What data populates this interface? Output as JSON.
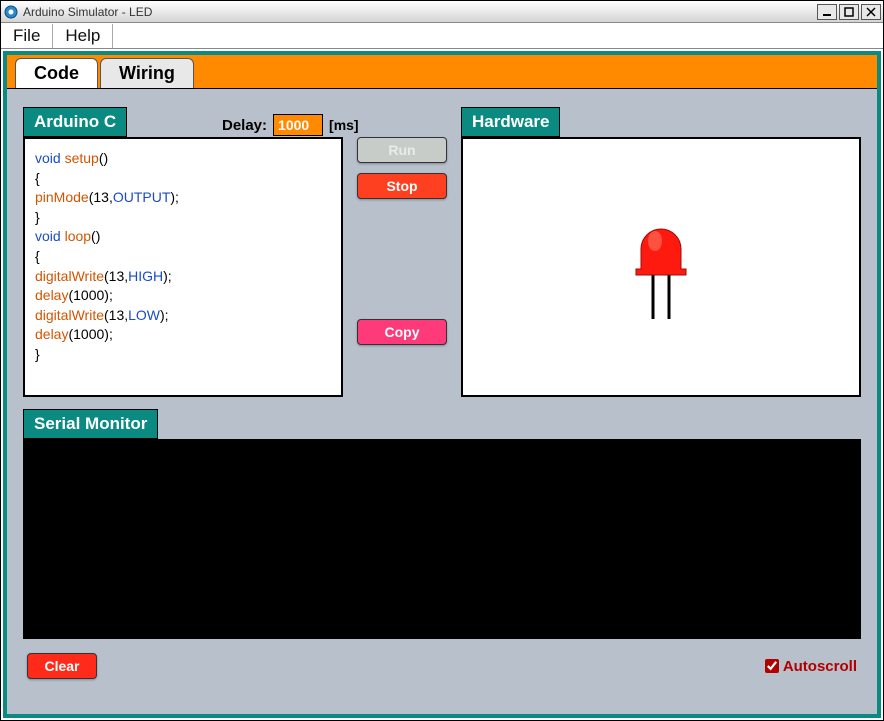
{
  "window": {
    "title": "Arduino Simulator - LED"
  },
  "menu": {
    "file": "File",
    "help": "Help"
  },
  "tabs": {
    "code": "Code",
    "wiring": "Wiring"
  },
  "panels": {
    "arduino_c": "Arduino C",
    "hardware": "Hardware",
    "serial_monitor": "Serial Monitor"
  },
  "delay": {
    "label": "Delay:",
    "value": "1000",
    "unit": "[ms]"
  },
  "buttons": {
    "run": "Run",
    "stop": "Stop",
    "copy": "Copy",
    "clear": "Clear"
  },
  "autoscroll": {
    "label": "Autoscroll",
    "checked": true
  },
  "code": {
    "lines": [
      {
        "tokens": [
          {
            "t": "void ",
            "c": "kw-void"
          },
          {
            "t": "setup",
            "c": "fn"
          },
          {
            "t": "()",
            "c": ""
          }
        ]
      },
      {
        "tokens": [
          {
            "t": "{",
            "c": ""
          }
        ]
      },
      {
        "tokens": [
          {
            "t": "pinMode",
            "c": "fn"
          },
          {
            "t": "(13,",
            "c": ""
          },
          {
            "t": "OUTPUT",
            "c": "output"
          },
          {
            "t": ");",
            "c": ""
          }
        ]
      },
      {
        "tokens": [
          {
            "t": "}",
            "c": ""
          }
        ]
      },
      {
        "tokens": [
          {
            "t": "void ",
            "c": "kw-void"
          },
          {
            "t": "loop",
            "c": "fn"
          },
          {
            "t": "()",
            "c": ""
          }
        ]
      },
      {
        "tokens": [
          {
            "t": "{",
            "c": ""
          }
        ]
      },
      {
        "tokens": [
          {
            "t": "digitalWrite",
            "c": "fn"
          },
          {
            "t": "(13,",
            "c": ""
          },
          {
            "t": "HIGH",
            "c": "const"
          },
          {
            "t": ");",
            "c": ""
          }
        ]
      },
      {
        "tokens": [
          {
            "t": "delay",
            "c": "fn"
          },
          {
            "t": "(1000);",
            "c": ""
          }
        ]
      },
      {
        "tokens": [
          {
            "t": "digitalWrite",
            "c": "fn"
          },
          {
            "t": "(13,",
            "c": ""
          },
          {
            "t": "LOW",
            "c": "const"
          },
          {
            "t": ");",
            "c": ""
          }
        ]
      },
      {
        "tokens": [
          {
            "t": "delay",
            "c": "fn"
          },
          {
            "t": "(1000);",
            "c": ""
          }
        ]
      },
      {
        "tokens": [
          {
            "t": "}",
            "c": ""
          }
        ]
      }
    ]
  },
  "colors": {
    "teal": "#0a8a80",
    "orange": "#ff8a00",
    "led_red": "#ff1a10",
    "led_red_dark": "#c01008",
    "body_bg": "#b8c0cc",
    "stop_btn": "#ff4020",
    "copy_btn": "#ff3a7a",
    "clear_btn": "#ff2a1a"
  },
  "led": {
    "state": "on",
    "color": "#ff1a10"
  }
}
